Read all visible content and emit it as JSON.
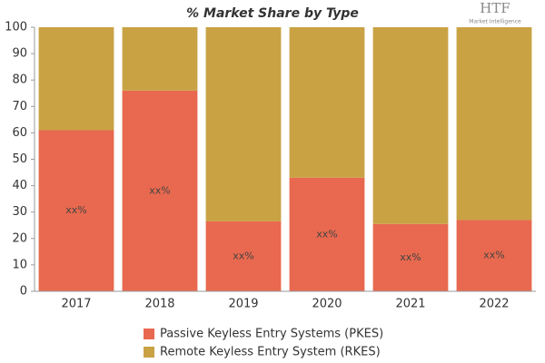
{
  "chart_data": {
    "type": "stacked-bar",
    "title": "% Market Share by Type",
    "logo": {
      "text": "HTF",
      "subtext": "Market Intelligence"
    },
    "categories": [
      "2017",
      "2018",
      "2019",
      "2020",
      "2021",
      "2022"
    ],
    "series": [
      {
        "name": "Passive Keyless Entry Systems (PKES)",
        "color": "#e8694f",
        "values": [
          61,
          76,
          26.5,
          43,
          25.5,
          27
        ],
        "value_labels": [
          "xx%",
          "xx%",
          "xx%",
          "xx%",
          "xx%",
          "xx%"
        ]
      },
      {
        "name": "Remote Keyless Entry System (RKES)",
        "color": "#c9a244",
        "values": [
          39,
          24,
          73.5,
          57,
          74.5,
          73
        ]
      }
    ],
    "ylim": [
      0,
      100
    ],
    "yticks": [
      0,
      10,
      20,
      30,
      40,
      50,
      60,
      70,
      80,
      90,
      100
    ],
    "grid": false
  }
}
